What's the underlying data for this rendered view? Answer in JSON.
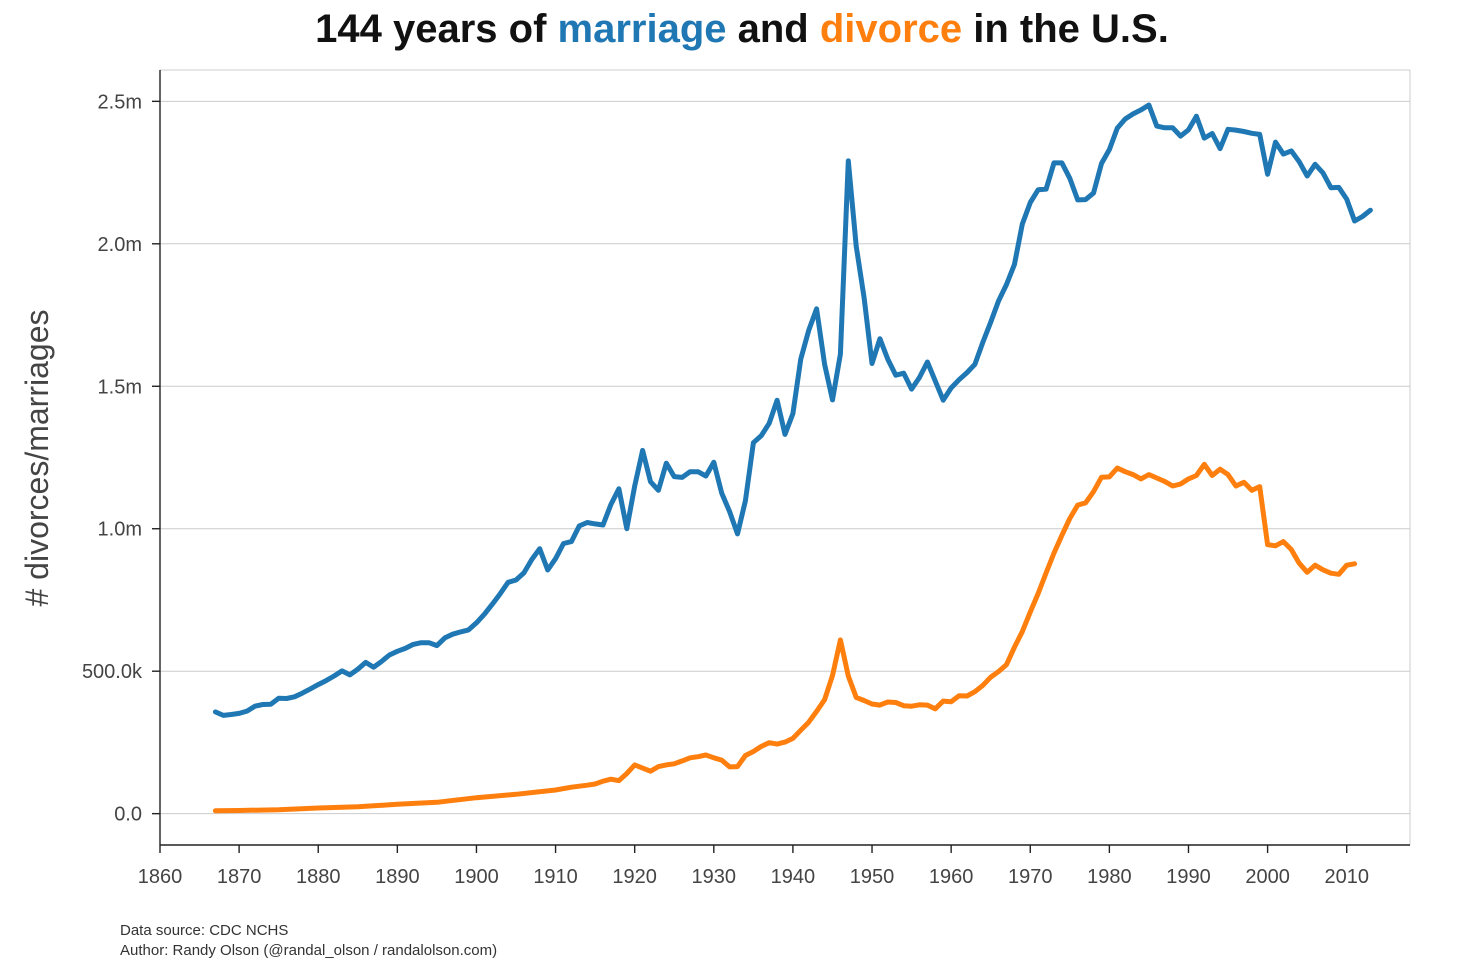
{
  "footer": {
    "source": "Data source: CDC NCHS",
    "author": "Author: Randy Olson (@randal_olson / randalolson.com)"
  },
  "chart_data": {
    "type": "line",
    "title_parts": [
      {
        "text": "144 years of ",
        "color": "#111111"
      },
      {
        "text": "marriage",
        "color": "#1f77b4"
      },
      {
        "text": " and ",
        "color": "#111111"
      },
      {
        "text": "divorce",
        "color": "#ff7f0e"
      },
      {
        "text": " in the U.S.",
        "color": "#111111"
      }
    ],
    "xlabel": "",
    "ylabel": "# divorces/marriages",
    "xlim": [
      1860,
      2018
    ],
    "ylim": [
      -110000,
      2610000
    ],
    "x_ticks": [
      1860,
      1870,
      1880,
      1890,
      1900,
      1910,
      1920,
      1930,
      1940,
      1950,
      1960,
      1970,
      1980,
      1990,
      2000,
      2010
    ],
    "y_ticks": [
      {
        "value": 0,
        "label": "0.0"
      },
      {
        "value": 500000,
        "label": "500.0k"
      },
      {
        "value": 1000000,
        "label": "1.0m"
      },
      {
        "value": 1500000,
        "label": "1.5m"
      },
      {
        "value": 2000000,
        "label": "2.0m"
      },
      {
        "value": 2500000,
        "label": "2.5m"
      }
    ],
    "grid": "horizontal",
    "legend": "none",
    "series": [
      {
        "key": "marriages",
        "color": "#1f77b4",
        "points": [
          [
            1867,
            357000
          ],
          [
            1868,
            345000
          ],
          [
            1869,
            348000
          ],
          [
            1870,
            352000
          ],
          [
            1871,
            360000
          ],
          [
            1872,
            377000
          ],
          [
            1873,
            383000
          ],
          [
            1874,
            384000
          ],
          [
            1875,
            405000
          ],
          [
            1876,
            404000
          ],
          [
            1877,
            410000
          ],
          [
            1878,
            423000
          ],
          [
            1879,
            438000
          ],
          [
            1880,
            453000
          ],
          [
            1881,
            467000
          ],
          [
            1882,
            483000
          ],
          [
            1883,
            501000
          ],
          [
            1884,
            487000
          ],
          [
            1885,
            507000
          ],
          [
            1886,
            531000
          ],
          [
            1887,
            514000
          ],
          [
            1888,
            534000
          ],
          [
            1889,
            557000
          ],
          [
            1890,
            570000
          ],
          [
            1891,
            580000
          ],
          [
            1892,
            594000
          ],
          [
            1893,
            600000
          ],
          [
            1894,
            600000
          ],
          [
            1895,
            590000
          ],
          [
            1896,
            617000
          ],
          [
            1897,
            630000
          ],
          [
            1898,
            638000
          ],
          [
            1899,
            645000
          ],
          [
            1900,
            670000
          ],
          [
            1901,
            700000
          ],
          [
            1902,
            735000
          ],
          [
            1903,
            772000
          ],
          [
            1904,
            812000
          ],
          [
            1905,
            820000
          ],
          [
            1906,
            845000
          ],
          [
            1907,
            892000
          ],
          [
            1908,
            930000
          ],
          [
            1909,
            855000
          ],
          [
            1910,
            895000
          ],
          [
            1911,
            948000
          ],
          [
            1912,
            955000
          ],
          [
            1913,
            1010000
          ],
          [
            1914,
            1022000
          ],
          [
            1915,
            1017000
          ],
          [
            1916,
            1013000
          ],
          [
            1917,
            1085000
          ],
          [
            1918,
            1140000
          ],
          [
            1919,
            1000000
          ],
          [
            1920,
            1150000
          ],
          [
            1921,
            1275000
          ],
          [
            1922,
            1165000
          ],
          [
            1923,
            1135000
          ],
          [
            1924,
            1230000
          ],
          [
            1925,
            1183000
          ],
          [
            1926,
            1180000
          ],
          [
            1927,
            1200000
          ],
          [
            1928,
            1200000
          ],
          [
            1929,
            1185000
          ],
          [
            1930,
            1233000
          ],
          [
            1931,
            1125000
          ],
          [
            1932,
            1060000
          ],
          [
            1933,
            982000
          ],
          [
            1934,
            1098000
          ],
          [
            1935,
            1302000
          ],
          [
            1936,
            1327000
          ],
          [
            1937,
            1370000
          ],
          [
            1938,
            1451000
          ],
          [
            1939,
            1331000
          ],
          [
            1940,
            1404000
          ],
          [
            1941,
            1596000
          ],
          [
            1942,
            1696000
          ],
          [
            1943,
            1772000
          ],
          [
            1944,
            1577000
          ],
          [
            1945,
            1452000
          ],
          [
            1946,
            1613000
          ],
          [
            1947,
            2291000
          ],
          [
            1948,
            1992000
          ],
          [
            1949,
            1811000
          ],
          [
            1950,
            1580000
          ],
          [
            1951,
            1667000
          ],
          [
            1952,
            1595000
          ],
          [
            1953,
            1539000
          ],
          [
            1954,
            1546000
          ],
          [
            1955,
            1490000
          ],
          [
            1956,
            1531000
          ],
          [
            1957,
            1585000
          ],
          [
            1958,
            1518000
          ],
          [
            1959,
            1451000
          ],
          [
            1960,
            1494000
          ],
          [
            1961,
            1523000
          ],
          [
            1962,
            1548000
          ],
          [
            1963,
            1577000
          ],
          [
            1964,
            1654000
          ],
          [
            1965,
            1725000
          ],
          [
            1966,
            1800000
          ],
          [
            1967,
            1857000
          ],
          [
            1968,
            1927000
          ],
          [
            1969,
            2069000
          ],
          [
            1970,
            2145000
          ],
          [
            1971,
            2190000
          ],
          [
            1972,
            2192000
          ],
          [
            1973,
            2284000
          ],
          [
            1974,
            2284000
          ],
          [
            1975,
            2230000
          ],
          [
            1976,
            2154000
          ],
          [
            1977,
            2155000
          ],
          [
            1978,
            2178000
          ],
          [
            1979,
            2282000
          ],
          [
            1980,
            2331000
          ],
          [
            1981,
            2406000
          ],
          [
            1982,
            2438000
          ],
          [
            1983,
            2456000
          ],
          [
            1984,
            2470000
          ],
          [
            1985,
            2487000
          ],
          [
            1986,
            2413000
          ],
          [
            1987,
            2407000
          ],
          [
            1988,
            2407000
          ],
          [
            1989,
            2378000
          ],
          [
            1990,
            2400000
          ],
          [
            1991,
            2448000
          ],
          [
            1992,
            2371000
          ],
          [
            1993,
            2387000
          ],
          [
            1994,
            2334000
          ],
          [
            1995,
            2402000
          ],
          [
            1996,
            2399000
          ],
          [
            1997,
            2394000
          ],
          [
            1998,
            2388000
          ],
          [
            1999,
            2384000
          ],
          [
            2000,
            2244000
          ],
          [
            2001,
            2357000
          ],
          [
            2002,
            2315000
          ],
          [
            2003,
            2326000
          ],
          [
            2004,
            2288000
          ],
          [
            2005,
            2238000
          ],
          [
            2006,
            2279000
          ],
          [
            2007,
            2249000
          ],
          [
            2008,
            2197000
          ],
          [
            2009,
            2198000
          ],
          [
            2010,
            2157000
          ],
          [
            2011,
            2080000
          ],
          [
            2012,
            2096000
          ],
          [
            2013,
            2118000
          ]
        ]
      },
      {
        "key": "divorces",
        "color": "#ff7f0e",
        "points": [
          [
            1867,
            10000
          ],
          [
            1870,
            11000
          ],
          [
            1875,
            14000
          ],
          [
            1880,
            20000
          ],
          [
            1885,
            24000
          ],
          [
            1890,
            33000
          ],
          [
            1895,
            40000
          ],
          [
            1900,
            56000
          ],
          [
            1905,
            68000
          ],
          [
            1910,
            83000
          ],
          [
            1912,
            93000
          ],
          [
            1914,
            100000
          ],
          [
            1915,
            104000
          ],
          [
            1916,
            114000
          ],
          [
            1917,
            121000
          ],
          [
            1918,
            116000
          ],
          [
            1919,
            141000
          ],
          [
            1920,
            171000
          ],
          [
            1921,
            160000
          ],
          [
            1922,
            149000
          ],
          [
            1923,
            165000
          ],
          [
            1924,
            171000
          ],
          [
            1925,
            175000
          ],
          [
            1926,
            185000
          ],
          [
            1927,
            196000
          ],
          [
            1928,
            200000
          ],
          [
            1929,
            206000
          ],
          [
            1930,
            196000
          ],
          [
            1931,
            188000
          ],
          [
            1932,
            164000
          ],
          [
            1933,
            165000
          ],
          [
            1934,
            204000
          ],
          [
            1935,
            218000
          ],
          [
            1936,
            236000
          ],
          [
            1937,
            249000
          ],
          [
            1938,
            244000
          ],
          [
            1939,
            251000
          ],
          [
            1940,
            264000
          ],
          [
            1941,
            293000
          ],
          [
            1942,
            321000
          ],
          [
            1943,
            359000
          ],
          [
            1944,
            400000
          ],
          [
            1945,
            485000
          ],
          [
            1946,
            610000
          ],
          [
            1947,
            483000
          ],
          [
            1948,
            408000
          ],
          [
            1949,
            397000
          ],
          [
            1950,
            385000
          ],
          [
            1951,
            381000
          ],
          [
            1952,
            392000
          ],
          [
            1953,
            390000
          ],
          [
            1954,
            379000
          ],
          [
            1955,
            377000
          ],
          [
            1956,
            382000
          ],
          [
            1957,
            381000
          ],
          [
            1958,
            368000
          ],
          [
            1959,
            395000
          ],
          [
            1960,
            393000
          ],
          [
            1961,
            414000
          ],
          [
            1962,
            413000
          ],
          [
            1963,
            428000
          ],
          [
            1964,
            450000
          ],
          [
            1965,
            479000
          ],
          [
            1966,
            499000
          ],
          [
            1967,
            523000
          ],
          [
            1968,
            584000
          ],
          [
            1969,
            639000
          ],
          [
            1970,
            708000
          ],
          [
            1971,
            773000
          ],
          [
            1972,
            845000
          ],
          [
            1973,
            915000
          ],
          [
            1974,
            977000
          ],
          [
            1975,
            1036000
          ],
          [
            1976,
            1083000
          ],
          [
            1977,
            1091000
          ],
          [
            1978,
            1130000
          ],
          [
            1979,
            1181000
          ],
          [
            1980,
            1182000
          ],
          [
            1981,
            1213000
          ],
          [
            1982,
            1200000
          ],
          [
            1983,
            1190000
          ],
          [
            1984,
            1175000
          ],
          [
            1985,
            1190000
          ],
          [
            1986,
            1178000
          ],
          [
            1987,
            1166000
          ],
          [
            1988,
            1150000
          ],
          [
            1989,
            1157000
          ],
          [
            1990,
            1175000
          ],
          [
            1991,
            1187000
          ],
          [
            1992,
            1226000
          ],
          [
            1993,
            1187000
          ],
          [
            1994,
            1209000
          ],
          [
            1995,
            1190000
          ],
          [
            1996,
            1150000
          ],
          [
            1997,
            1163000
          ],
          [
            1998,
            1135000
          ],
          [
            1999,
            1148000
          ],
          [
            2000,
            944000
          ],
          [
            2001,
            940000
          ],
          [
            2002,
            955000
          ],
          [
            2003,
            927000
          ],
          [
            2004,
            879000
          ],
          [
            2005,
            847000
          ],
          [
            2006,
            872000
          ],
          [
            2007,
            856000
          ],
          [
            2008,
            844000
          ],
          [
            2009,
            840000
          ],
          [
            2010,
            872000
          ],
          [
            2011,
            877000
          ]
        ]
      }
    ]
  }
}
